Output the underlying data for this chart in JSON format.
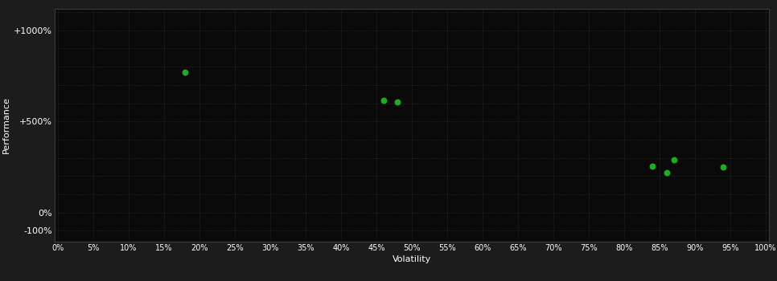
{
  "bg_color": "#1c1c1c",
  "plot_bg_color": "#0a0a0a",
  "grid_color": "#3a3a3a",
  "text_color": "#ffffff",
  "point_color": "#22aa22",
  "xlabel": "Volatility",
  "ylabel": "Performance",
  "x_ticks": [
    0,
    5,
    10,
    15,
    20,
    25,
    30,
    35,
    40,
    45,
    50,
    55,
    60,
    65,
    70,
    75,
    80,
    85,
    90,
    95,
    100
  ],
  "y_tick_labels": [
    "-100%",
    "0%",
    "+500%",
    "+1000%"
  ],
  "y_tick_display": [
    0,
    1,
    6,
    11
  ],
  "n_grid_rows": 12,
  "points": [
    {
      "x": 18,
      "y_disp": 8.7
    },
    {
      "x": 46,
      "y_disp": 7.15
    },
    {
      "x": 48,
      "y_disp": 7.05
    },
    {
      "x": 84,
      "y_disp": 3.55
    },
    {
      "x": 86,
      "y_disp": 3.2
    },
    {
      "x": 87,
      "y_disp": 3.9
    },
    {
      "x": 94,
      "y_disp": 3.5
    }
  ],
  "figsize": [
    9.66,
    3.5
  ],
  "dpi": 100
}
